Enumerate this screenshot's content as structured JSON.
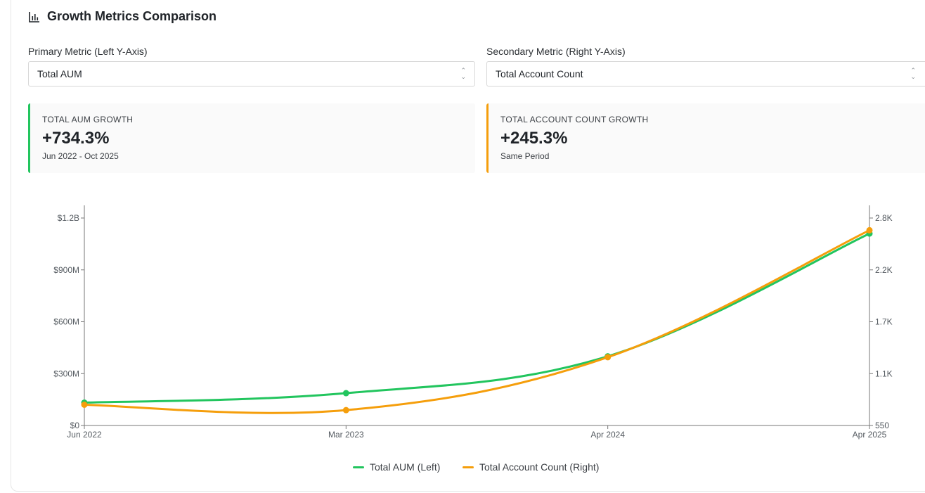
{
  "header": {
    "title": "Growth Metrics Comparison",
    "icon": "bar-chart-icon"
  },
  "controls": {
    "primary": {
      "label": "Primary Metric (Left Y-Axis)",
      "value": "Total AUM"
    },
    "secondary": {
      "label": "Secondary Metric (Right Y-Axis)",
      "value": "Total Account Count"
    }
  },
  "stats": [
    {
      "label": "TOTAL AUM GROWTH",
      "value": "+734.3%",
      "sub": "Jun 2022 - Oct 2025",
      "color": "#22c55e"
    },
    {
      "label": "TOTAL ACCOUNT COUNT GROWTH",
      "value": "+245.3%",
      "sub": "Same Period",
      "color": "#f59e0b"
    }
  ],
  "chart_data": {
    "type": "line",
    "x": [
      "Jun 2022",
      "Mar 2023",
      "Apr 2024",
      "Apr 2025"
    ],
    "left_axis": {
      "ticks": [
        "$0",
        "$300M",
        "$600M",
        "$900M",
        "$1.2B"
      ],
      "tick_values": [
        0,
        300,
        600,
        900,
        1200
      ],
      "range": [
        0,
        1200
      ],
      "unit": "M"
    },
    "right_axis": {
      "ticks": [
        "550",
        "1.1K",
        "1.7K",
        "2.2K",
        "2.8K"
      ],
      "tick_values": [
        550,
        1100,
        1650,
        2200,
        2750
      ],
      "range": [
        550,
        2750
      ]
    },
    "series": [
      {
        "name": "Total AUM (Left)",
        "axis": "left",
        "color": "#22c55e",
        "values": [
          132,
          187,
          400,
          1110
        ]
      },
      {
        "name": "Total Account Count (Right)",
        "axis": "right",
        "color": "#f59e0b",
        "values": [
          770,
          713,
          1274,
          2620
        ]
      }
    ],
    "grid": false,
    "legend": "bottom-center"
  }
}
